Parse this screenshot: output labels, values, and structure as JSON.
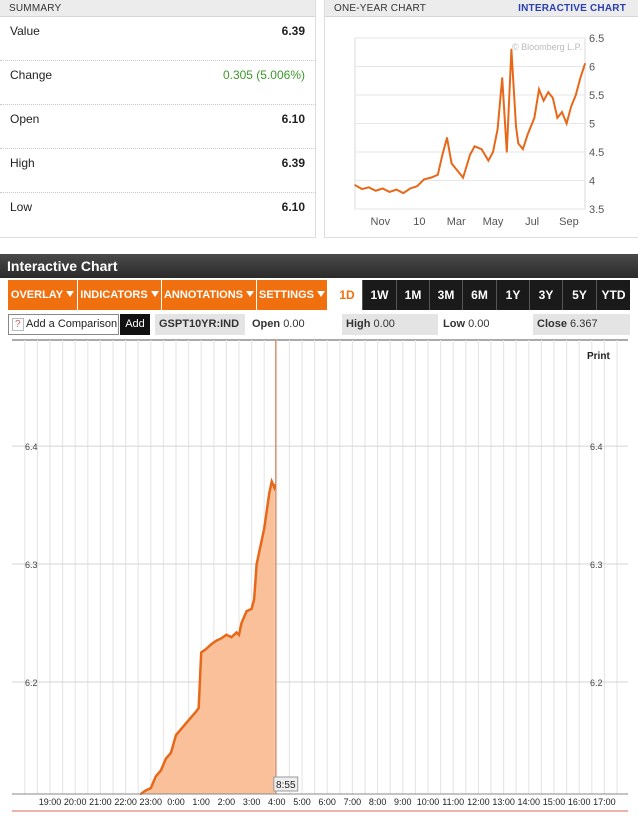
{
  "summary": {
    "title": "SUMMARY",
    "rows": [
      {
        "label": "Value",
        "value": "6.39"
      },
      {
        "label": "Change",
        "value": "0.305 (5.006%)"
      },
      {
        "label": "Open",
        "value": "6.10"
      },
      {
        "label": "High",
        "value": "6.39"
      },
      {
        "label": "Low",
        "value": "6.10"
      }
    ]
  },
  "one_year": {
    "title": "ONE-YEAR CHART",
    "link": "INTERACTIVE CHART",
    "copyright": "© Bloomberg L.P."
  },
  "interactive": {
    "title": "Interactive Chart",
    "menus": [
      "OVERLAY",
      "INDICATORS",
      "ANNOTATIONS",
      "SETTINGS"
    ],
    "ranges": [
      "1D",
      "1W",
      "1M",
      "3M",
      "6M",
      "1Y",
      "3Y",
      "5Y",
      "YTD"
    ],
    "active_range": "1D",
    "compare_q": "?",
    "compare_placeholder": "Add a Comparison",
    "add_label": "Add",
    "ticker": "GSPT10YR:IND",
    "open_label": "Open",
    "open_value": "0.00",
    "high_label": "High",
    "high_value": "0.00",
    "low_label": "Low",
    "low_value": "0.00",
    "close_label": "Close",
    "close_value": "6.367",
    "print_label": "Print",
    "cursor_label": "8:55"
  },
  "colors": {
    "accent": "#f07010",
    "line": "#e8681a",
    "fill": "#f9c09a",
    "green": "#3a9a2a"
  },
  "chart_data": [
    {
      "type": "line",
      "title": "ONE-YEAR CHART",
      "x_ticks": [
        "Nov",
        "10",
        "Mar",
        "May",
        "Jul",
        "Sep"
      ],
      "y_ticks": [
        3.5,
        4,
        4.5,
        5,
        5.5,
        6,
        6.5
      ],
      "ylim": [
        3.5,
        6.5
      ],
      "x": [
        0,
        0.03,
        0.06,
        0.09,
        0.12,
        0.15,
        0.18,
        0.21,
        0.24,
        0.27,
        0.3,
        0.33,
        0.36,
        0.38,
        0.4,
        0.42,
        0.44,
        0.47,
        0.5,
        0.52,
        0.55,
        0.58,
        0.6,
        0.62,
        0.64,
        0.66,
        0.68,
        0.7,
        0.71,
        0.72,
        0.73,
        0.75,
        0.78,
        0.8,
        0.82,
        0.84,
        0.86,
        0.88,
        0.9,
        0.92,
        0.94,
        0.96,
        0.98,
        1.0
      ],
      "values": [
        3.92,
        3.85,
        3.88,
        3.82,
        3.86,
        3.8,
        3.84,
        3.78,
        3.86,
        3.9,
        4.02,
        4.05,
        4.1,
        4.45,
        4.75,
        4.3,
        4.2,
        4.05,
        4.45,
        4.6,
        4.55,
        4.35,
        4.5,
        4.9,
        5.8,
        4.5,
        6.3,
        4.95,
        4.65,
        4.6,
        4.55,
        4.8,
        5.1,
        5.6,
        5.4,
        5.55,
        5.45,
        5.1,
        5.2,
        5.0,
        5.3,
        5.5,
        5.8,
        6.05
      ]
    },
    {
      "type": "area",
      "title": "",
      "x_ticks": [
        "19:00",
        "20:00",
        "21:00",
        "22:00",
        "23:00",
        "0:00",
        "1:00",
        "2:00",
        "3:00",
        "4:00",
        "5:00",
        "6:00",
        "7:00",
        "8:00",
        "9:00",
        "10:00",
        "11:00",
        "12:00",
        "13:00",
        "14:00",
        "15:00",
        "16:00",
        "17:00"
      ],
      "y_ticks": [
        6.2,
        6.3,
        6.4
      ],
      "ylim": [
        6.105,
        6.49
      ],
      "x": [
        3.6,
        3.8,
        4.0,
        4.2,
        4.4,
        4.6,
        4.8,
        5.0,
        5.2,
        5.4,
        5.6,
        5.8,
        5.9,
        6.0,
        6.2,
        6.4,
        6.6,
        6.8,
        7.0,
        7.2,
        7.4,
        7.5,
        7.6,
        7.8,
        8.0,
        8.1,
        8.2,
        8.3,
        8.4,
        8.5,
        8.6,
        8.7,
        8.8,
        8.9,
        8.92
      ],
      "values": [
        6.105,
        6.108,
        6.11,
        6.12,
        6.125,
        6.135,
        6.14,
        6.155,
        6.16,
        6.165,
        6.17,
        6.175,
        6.178,
        6.225,
        6.228,
        6.232,
        6.235,
        6.237,
        6.24,
        6.238,
        6.242,
        6.24,
        6.25,
        6.26,
        6.262,
        6.27,
        6.3,
        6.31,
        6.32,
        6.33,
        6.345,
        6.36,
        6.37,
        6.365,
        6.367
      ]
    }
  ]
}
